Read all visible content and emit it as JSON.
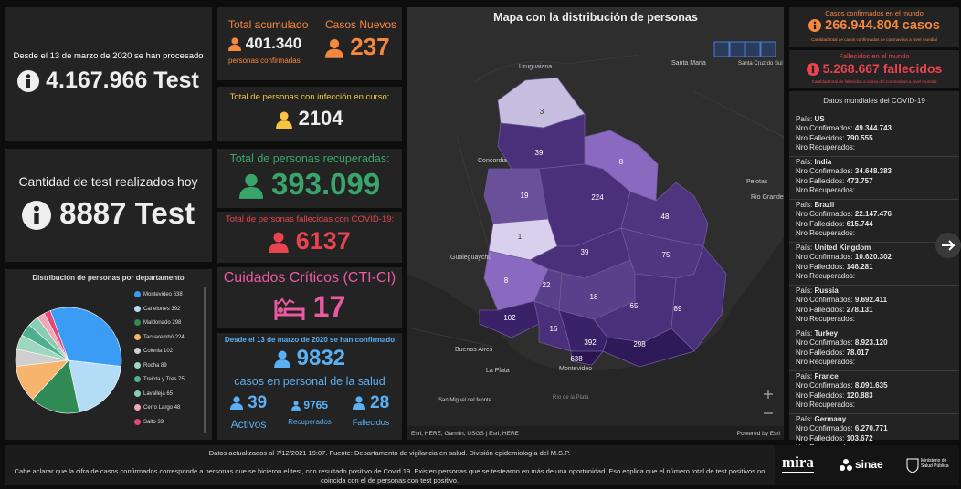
{
  "tests_total": {
    "caption": "Desde el 13 de marzo de 2020 se han procesado",
    "value": "4.167.966 Test"
  },
  "tests_today": {
    "caption": "Cantidad de test realizados hoy",
    "value": "8887 Test"
  },
  "departments_chart": {
    "type": "pie",
    "title": "Distribución de personas por departamento",
    "categories": [
      "Montevideo",
      "Canelones",
      "Maldonado",
      "Tacuarembó",
      "Colonia",
      "Rocha",
      "Treinta y Tres",
      "Lavalleja",
      "Cerro Largo",
      "Salto"
    ],
    "values": [
      638,
      392,
      298,
      224,
      102,
      89,
      75,
      65,
      48,
      39
    ],
    "colors": [
      "#3b9cf5",
      "#b4dcf7",
      "#2f8a55",
      "#f6b46c",
      "#cfcfcf",
      "#9fd6c2",
      "#4fb08f",
      "#8cccb4",
      "#f4a7b6",
      "#e2487c"
    ]
  },
  "accumulated": {
    "label": "Total acumulado",
    "value": "401.340",
    "sublabel": "personas confirmadas"
  },
  "new_cases": {
    "label": "Casos Nuevos",
    "value": "237"
  },
  "active": {
    "label": "Total de personas con infección en curso:",
    "value": "2104"
  },
  "recovered": {
    "label": "Total de personas recuperadas:",
    "value": "393.099"
  },
  "deceased": {
    "label": "Total de personas fallecidas con COVID-19:",
    "value": "6137"
  },
  "critical": {
    "label": "Cuidados Críticos (CTI-CI)",
    "value": "17"
  },
  "health_staff": {
    "caption": "Desde el 13 de marzo de 2020 se han confirmado",
    "value": "9832",
    "sublabel": "casos en personal de la salud",
    "breakdown": [
      {
        "value": "39",
        "label": "Activos"
      },
      {
        "value": "9765",
        "label": "Recuperados"
      },
      {
        "value": "28",
        "label": "Fallecidos"
      }
    ]
  },
  "map": {
    "title": "Mapa con la distribución de personas",
    "regions": [
      "3",
      "39",
      "8",
      "19",
      "224",
      "1",
      "48",
      "39",
      "75",
      "8",
      "22",
      "18",
      "65",
      "89",
      "102",
      "16",
      "392",
      "298",
      "638"
    ],
    "places": [
      "Uruguaiana",
      "Santa Maria",
      "Santa Cruz do Sul",
      "Concordia",
      "Pelotas",
      "Rio Grande",
      "Gualeguaychú",
      "Buenos Aires",
      "La Plata",
      "Montevideo",
      "San Miguel del Monte",
      "Río de la Plata"
    ],
    "attribution": "Esri, HERE, Garmin, USGS | Esri, HERE",
    "powered": "Powered by Esri"
  },
  "world_cases": {
    "label": "Casos confirmados en el mundo",
    "value": "266.944.804 casos",
    "note": "Cantidad total de casos confirmados de coronavirus a nivel mundial"
  },
  "world_deaths": {
    "label": "Fallecidos en el mundo",
    "value": "5.268.667 fallecidos",
    "note": "Cantidad total de fallecidos a causa del coronavirus a nivel mundial"
  },
  "world_list": {
    "title": "Datos mundiales del COVID-19",
    "fields": [
      "País:",
      "Nro Confirmados:",
      "Nro Fallecidos:",
      "Nro Recuperados:"
    ],
    "countries": [
      {
        "name": "US",
        "confirmed": "49.344.743",
        "deaths": "790.555"
      },
      {
        "name": "India",
        "confirmed": "34.648.383",
        "deaths": "473.757"
      },
      {
        "name": "Brazil",
        "confirmed": "22.147.476",
        "deaths": "615.744"
      },
      {
        "name": "United Kingdom",
        "confirmed": "10.620.302",
        "deaths": "146.281"
      },
      {
        "name": "Russia",
        "confirmed": "9.692.411",
        "deaths": "278.131"
      },
      {
        "name": "Turkey",
        "confirmed": "8.923.120",
        "deaths": "78.017"
      },
      {
        "name": "France",
        "confirmed": "8.091.635",
        "deaths": "120.883"
      },
      {
        "name": "Germany",
        "confirmed": "6.270.771",
        "deaths": "103.672"
      }
    ]
  },
  "footer": {
    "updated": "Datos actualizados al 7/12/2021 19:07. Fuente: Departamento de vigilancia en salud. División epidemiología del M.S.P.",
    "note": "Cabe aclarar que la cifra de casos confirmados corresponde a personas que se hicieron el test, con resultado positivo de Covid 19. Existen personas que se testearon en más de una oportunidad. Eso explica que el número total de test positivos no coincida con el de personas con test positivo.",
    "logos": [
      "mira",
      "sinae",
      "Ministerio de Salud Pública"
    ]
  }
}
